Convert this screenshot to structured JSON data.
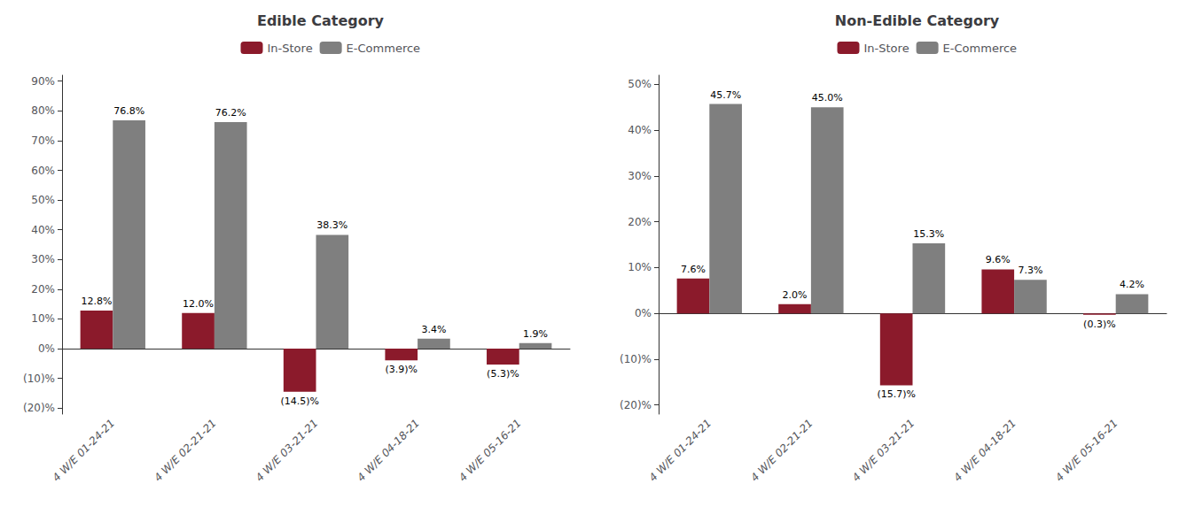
{
  "chart_data": [
    {
      "type": "bar",
      "title": "Edible Category",
      "categories": [
        "4 W/E 01-24-21",
        "4 W/E 02-21-21",
        "4 W/E 03-21-21",
        "4 W/E 04-18-21",
        "4 W/E 05-16-21"
      ],
      "series": [
        {
          "name": "In-Store",
          "color": "#8B1A2B",
          "values": [
            12.8,
            12.0,
            -14.5,
            -3.9,
            -5.3
          ],
          "value_labels": [
            "12.8%",
            "12.0%",
            "(14.5)%",
            "(3.9)%",
            "(5.3)%"
          ]
        },
        {
          "name": "E-Commerce",
          "color": "#7F7F7F",
          "values": [
            76.8,
            76.2,
            38.3,
            3.4,
            1.9
          ],
          "value_labels": [
            "76.8%",
            "76.2%",
            "38.3%",
            "3.4%",
            "1.9%"
          ]
        }
      ],
      "ylim": [
        -22,
        92
      ],
      "yticks": [
        {
          "value": -20,
          "label": "(20)%"
        },
        {
          "value": -10,
          "label": "(10)%"
        },
        {
          "value": 0,
          "label": "0%"
        },
        {
          "value": 10,
          "label": "10%"
        },
        {
          "value": 20,
          "label": "20%"
        },
        {
          "value": 30,
          "label": "30%"
        },
        {
          "value": 40,
          "label": "40%"
        },
        {
          "value": 50,
          "label": "50%"
        },
        {
          "value": 60,
          "label": "60%"
        },
        {
          "value": 70,
          "label": "70%"
        },
        {
          "value": 80,
          "label": "80%"
        },
        {
          "value": 90,
          "label": "90%"
        }
      ],
      "grid": false,
      "legend": "top",
      "data_labels": true
    },
    {
      "type": "bar",
      "title": "Non-Edible Category",
      "categories": [
        "4 W/E 01-24-21",
        "4 W/E 02-21-21",
        "4 W/E 03-21-21",
        "4 W/E 04-18-21",
        "4 W/E 05-16-21"
      ],
      "series": [
        {
          "name": "In-Store",
          "color": "#8B1A2B",
          "values": [
            7.6,
            2.0,
            -15.7,
            9.6,
            -0.3
          ],
          "value_labels": [
            "7.6%",
            "2.0%",
            "(15.7)%",
            "9.6%",
            "(0.3)%"
          ]
        },
        {
          "name": "E-Commerce",
          "color": "#7F7F7F",
          "values": [
            45.7,
            45.0,
            15.3,
            7.3,
            4.2
          ],
          "value_labels": [
            "45.7%",
            "45.0%",
            "15.3%",
            "7.3%",
            "4.2%"
          ]
        }
      ],
      "ylim": [
        -22,
        52
      ],
      "yticks": [
        {
          "value": -20,
          "label": "(20)%"
        },
        {
          "value": -10,
          "label": "(10)%"
        },
        {
          "value": 0,
          "label": "0%"
        },
        {
          "value": 10,
          "label": "10%"
        },
        {
          "value": 20,
          "label": "20%"
        },
        {
          "value": 30,
          "label": "30%"
        },
        {
          "value": 40,
          "label": "40%"
        },
        {
          "value": 50,
          "label": "50%"
        }
      ],
      "grid": false,
      "legend": "top",
      "data_labels": true
    }
  ]
}
